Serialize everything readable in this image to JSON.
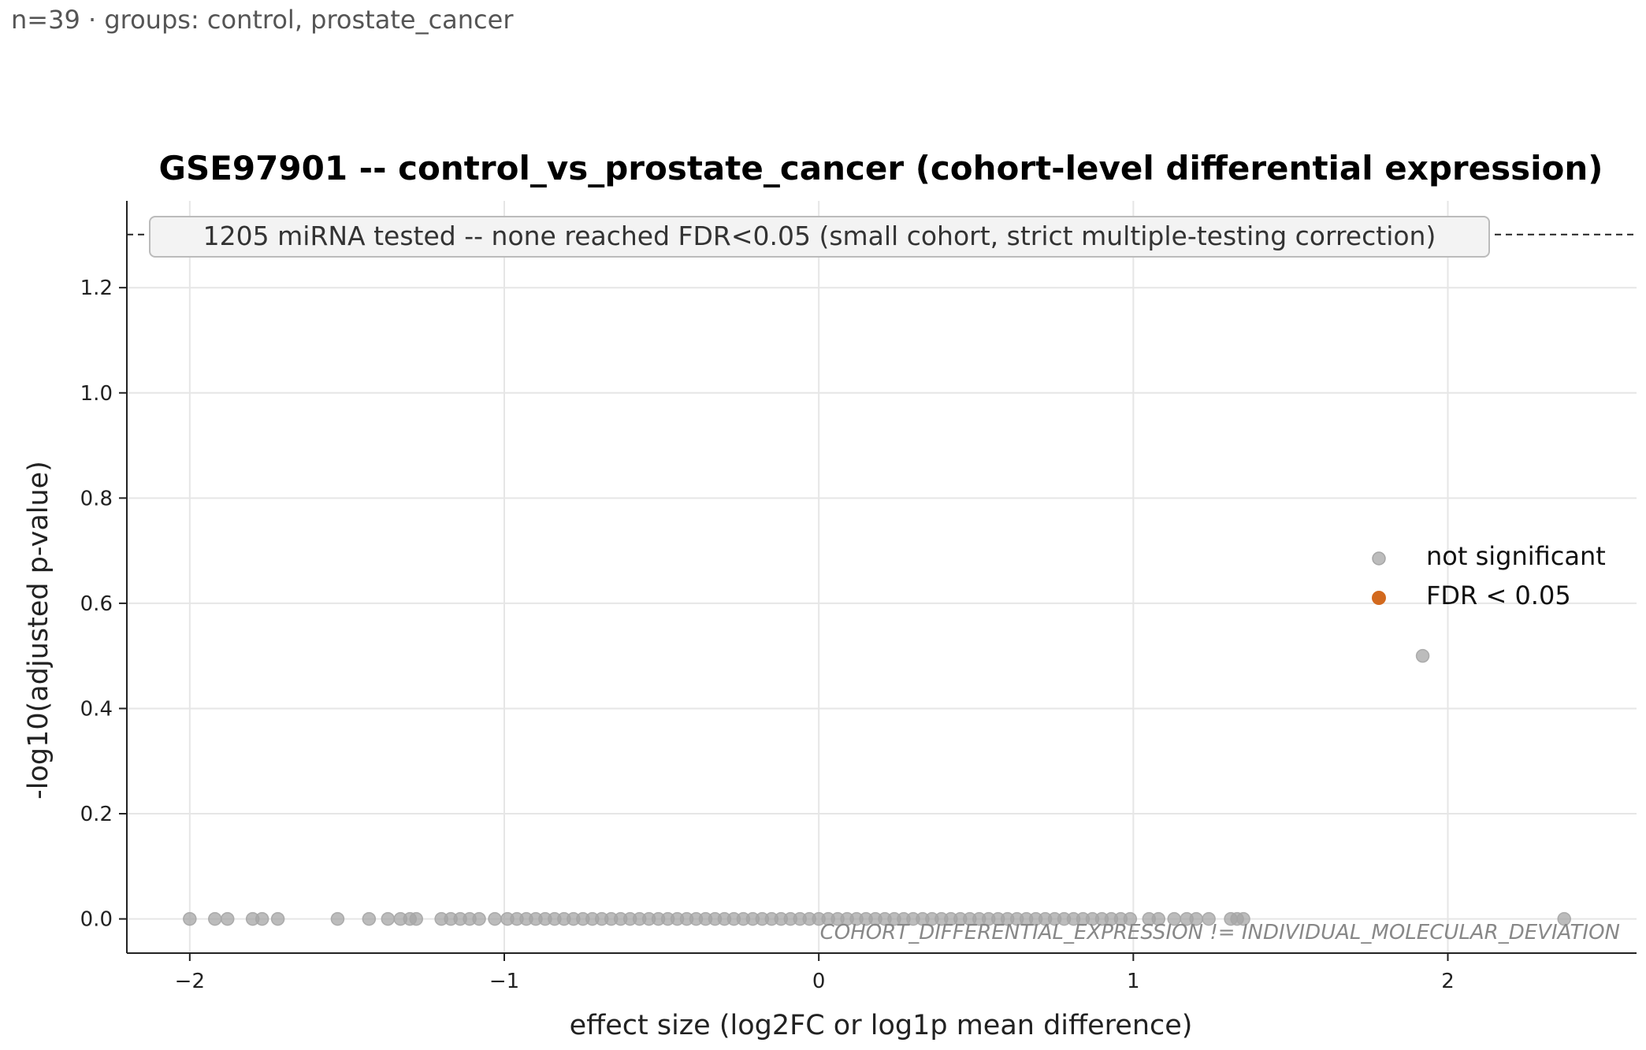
{
  "caption": "n=39 · groups: control, prostate_cancer",
  "chart_data": {
    "type": "scatter",
    "title": "GSE97901 -- control_vs_prostate_cancer (cohort-level differential expression)",
    "xlabel": "effect size (log2FC or log1p mean difference)",
    "ylabel": "-log10(adjusted p-value)",
    "xlim": [
      -2.2,
      2.6
    ],
    "ylim": [
      -0.065,
      1.365
    ],
    "x_ticks": [
      -2,
      -1,
      0,
      1,
      2
    ],
    "x_tick_labels": [
      "−2",
      "−1",
      "0",
      "1",
      "2"
    ],
    "y_ticks": [
      0.0,
      0.2,
      0.4,
      0.6,
      0.8,
      1.0,
      1.2
    ],
    "y_tick_labels": [
      "0.0",
      "0.2",
      "0.4",
      "0.6",
      "0.8",
      "1.0",
      "1.2"
    ],
    "grid": true,
    "threshold_line": {
      "y": 1.301,
      "style": "dashed"
    },
    "annotation_box": "1205 miRNA tested -- none reached FDR<0.05 (small cohort, strict multiple-testing correction)",
    "watermark": "COHORT_DIFFERENTIAL_EXPRESSION != INDIVIDUAL_MOLECULAR_DEVIATION",
    "legend": {
      "placement": "right",
      "entries": [
        {
          "label": "not significant",
          "color": "#a6a6a6"
        },
        {
          "label": "FDR < 0.05",
          "color": "#d2691e"
        }
      ]
    },
    "series": [
      {
        "name": "not significant",
        "color": "#a6a6a6",
        "points": [
          [
            -2.0,
            0
          ],
          [
            -1.92,
            0
          ],
          [
            -1.88,
            0
          ],
          [
            -1.8,
            0
          ],
          [
            -1.77,
            0
          ],
          [
            -1.72,
            0
          ],
          [
            -1.53,
            0
          ],
          [
            -1.43,
            0
          ],
          [
            -1.37,
            0
          ],
          [
            -1.33,
            0
          ],
          [
            -1.3,
            0
          ],
          [
            -1.28,
            0
          ],
          [
            -1.2,
            0
          ],
          [
            -1.17,
            0
          ],
          [
            -1.14,
            0
          ],
          [
            -1.11,
            0
          ],
          [
            -1.08,
            0
          ],
          [
            -1.03,
            0
          ],
          [
            -0.99,
            0
          ],
          [
            -0.96,
            0
          ],
          [
            -0.93,
            0
          ],
          [
            -0.9,
            0
          ],
          [
            -0.87,
            0
          ],
          [
            -0.84,
            0
          ],
          [
            -0.81,
            0
          ],
          [
            -0.78,
            0
          ],
          [
            -0.75,
            0
          ],
          [
            -0.72,
            0
          ],
          [
            -0.69,
            0
          ],
          [
            -0.66,
            0
          ],
          [
            -0.63,
            0
          ],
          [
            -0.6,
            0
          ],
          [
            -0.57,
            0
          ],
          [
            -0.54,
            0
          ],
          [
            -0.51,
            0
          ],
          [
            -0.48,
            0
          ],
          [
            -0.45,
            0
          ],
          [
            -0.42,
            0
          ],
          [
            -0.39,
            0
          ],
          [
            -0.36,
            0
          ],
          [
            -0.33,
            0
          ],
          [
            -0.3,
            0
          ],
          [
            -0.27,
            0
          ],
          [
            -0.24,
            0
          ],
          [
            -0.21,
            0
          ],
          [
            -0.18,
            0
          ],
          [
            -0.15,
            0
          ],
          [
            -0.12,
            0
          ],
          [
            -0.09,
            0
          ],
          [
            -0.06,
            0
          ],
          [
            -0.03,
            0
          ],
          [
            0.0,
            0
          ],
          [
            0.03,
            0
          ],
          [
            0.06,
            0
          ],
          [
            0.09,
            0
          ],
          [
            0.12,
            0
          ],
          [
            0.15,
            0
          ],
          [
            0.18,
            0
          ],
          [
            0.21,
            0
          ],
          [
            0.24,
            0
          ],
          [
            0.27,
            0
          ],
          [
            0.3,
            0
          ],
          [
            0.33,
            0
          ],
          [
            0.36,
            0
          ],
          [
            0.39,
            0
          ],
          [
            0.42,
            0
          ],
          [
            0.45,
            0
          ],
          [
            0.48,
            0
          ],
          [
            0.51,
            0
          ],
          [
            0.54,
            0
          ],
          [
            0.57,
            0
          ],
          [
            0.6,
            0
          ],
          [
            0.63,
            0
          ],
          [
            0.66,
            0
          ],
          [
            0.69,
            0
          ],
          [
            0.72,
            0
          ],
          [
            0.75,
            0
          ],
          [
            0.78,
            0
          ],
          [
            0.81,
            0
          ],
          [
            0.84,
            0
          ],
          [
            0.87,
            0
          ],
          [
            0.9,
            0
          ],
          [
            0.93,
            0
          ],
          [
            0.96,
            0
          ],
          [
            0.99,
            0
          ],
          [
            1.05,
            0
          ],
          [
            1.08,
            0
          ],
          [
            1.13,
            0
          ],
          [
            1.17,
            0
          ],
          [
            1.2,
            0
          ],
          [
            1.24,
            0
          ],
          [
            1.31,
            0
          ],
          [
            1.33,
            0
          ],
          [
            1.35,
            0
          ],
          [
            1.92,
            0.5
          ],
          [
            2.37,
            0
          ]
        ]
      },
      {
        "name": "FDR < 0.05",
        "color": "#d2691e",
        "points": []
      }
    ]
  }
}
